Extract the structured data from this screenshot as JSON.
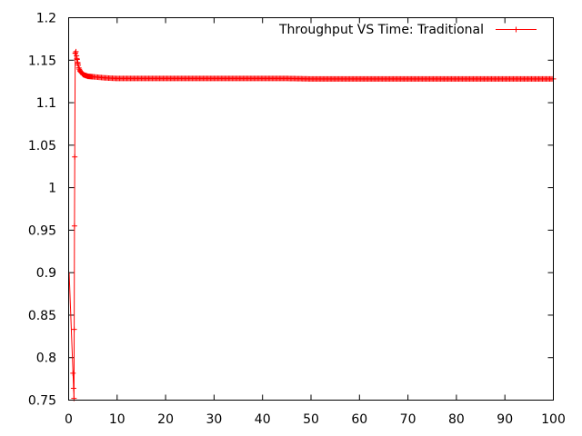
{
  "chart_data": {
    "type": "line",
    "title": "",
    "xlabel": "",
    "ylabel": "",
    "xlim": [
      0,
      100
    ],
    "ylim": [
      0.75,
      1.2
    ],
    "x_ticks": [
      0,
      10,
      20,
      30,
      40,
      50,
      60,
      70,
      80,
      90,
      100
    ],
    "y_ticks": [
      0.75,
      0.8,
      0.85,
      0.9,
      0.95,
      1,
      1.05,
      1.1,
      1.15,
      1.2
    ],
    "x_tick_labels": [
      "0",
      "10",
      "20",
      "30",
      "40",
      "50",
      "60",
      "70",
      "80",
      "90",
      "100"
    ],
    "y_tick_labels": [
      "0.75",
      "0.8",
      "0.85",
      "0.9",
      "0.95",
      "1",
      "1.05",
      "1.1",
      "1.15",
      "1.2"
    ],
    "grid": false,
    "legend_position": "top-right",
    "series": [
      {
        "name": "Throughput VS Time: Traditional",
        "color": "#ff0000",
        "marker": "plus",
        "x": [
          0.1,
          1.1,
          1.2,
          1.35,
          1.5,
          1.7,
          1.9,
          2.1,
          2.4,
          2.7,
          3.0,
          3.5,
          4.0,
          5.0,
          6.0,
          7.0,
          8.0,
          10.0,
          15.0,
          20.0,
          30.0,
          40.0,
          45.0,
          50.0,
          60.0,
          70.0,
          80.0,
          90.0,
          100.0
        ],
        "y": [
          0.9,
          0.752,
          0.955,
          1.158,
          1.16,
          1.152,
          1.146,
          1.141,
          1.137,
          1.135,
          1.133,
          1.132,
          1.131,
          1.1305,
          1.13,
          1.1295,
          1.129,
          1.1285,
          1.1285,
          1.1285,
          1.1285,
          1.1285,
          1.1285,
          1.128,
          1.128,
          1.128,
          1.128,
          1.128,
          1.128
        ]
      }
    ]
  }
}
